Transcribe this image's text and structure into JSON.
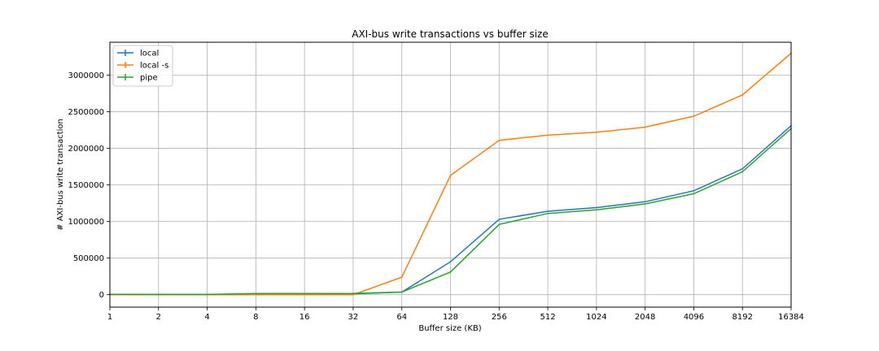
{
  "chart_data": {
    "type": "line",
    "title": "AXI-bus write transactions vs buffer size",
    "xlabel": "Buffer size (KB)",
    "ylabel": "# AXI-bus write transaction",
    "x_scale": "log2",
    "x": [
      1,
      2,
      4,
      8,
      16,
      32,
      64,
      128,
      256,
      512,
      1024,
      2048,
      4096,
      8192,
      16384
    ],
    "x_tick_labels": [
      "1",
      "2",
      "4",
      "8",
      "16",
      "32",
      "64",
      "128",
      "256",
      "512",
      "1024",
      "2048",
      "4096",
      "8192",
      "16384"
    ],
    "y_ticks": [
      0,
      500000,
      1000000,
      1500000,
      2000000,
      2500000,
      3000000
    ],
    "y_tick_labels": [
      "0",
      "500000",
      "1000000",
      "1500000",
      "2000000",
      "2500000",
      "3000000"
    ],
    "ylim": [
      -170000,
      3450000
    ],
    "grid": true,
    "legend_position": "top-left",
    "error_bars": true,
    "series": [
      {
        "name": "local",
        "color": "#1f77b4",
        "values": [
          5000,
          3000,
          2000,
          12000,
          12000,
          12000,
          35000,
          450000,
          1030000,
          1140000,
          1190000,
          1270000,
          1420000,
          1720000,
          2310000
        ]
      },
      {
        "name": "local -s",
        "color": "#ff7f0e",
        "values": [
          0,
          0,
          0,
          0,
          0,
          0,
          240000,
          1630000,
          2110000,
          2180000,
          2220000,
          2290000,
          2440000,
          2730000,
          3300000
        ]
      },
      {
        "name": "pipe",
        "color": "#2ca02c",
        "values": [
          5000,
          3000,
          3000,
          15000,
          15000,
          18000,
          35000,
          310000,
          960000,
          1110000,
          1160000,
          1240000,
          1380000,
          1680000,
          2270000
        ]
      }
    ]
  }
}
